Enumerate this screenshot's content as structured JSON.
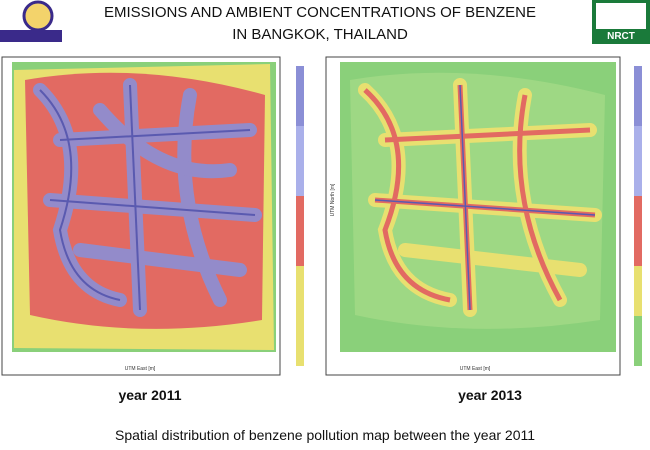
{
  "header": {
    "title_lines": [
      "EMISSIONS AND AMBIENT CONCENTRATIONS OF BENZENE",
      "IN BANGKOK, THAILAND"
    ],
    "logo_right": "NRCT"
  },
  "maps": [
    {
      "x_axis": "UTM East [m]",
      "year": "year 2011"
    },
    {
      "x_axis": "UTM East [m]",
      "y_axis": "UTM North [m]",
      "year": "year 2013"
    }
  ],
  "caption": "Spatial distribution of benzene pollution map between the year 2011"
}
